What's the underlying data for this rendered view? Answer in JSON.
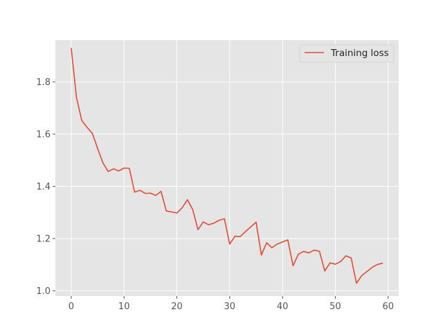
{
  "chart_data": {
    "type": "line",
    "title": "",
    "xlabel": "",
    "ylabel": "",
    "xlim": [
      -3,
      62
    ],
    "ylim": [
      0.98,
      1.96
    ],
    "xticks": [
      0,
      10,
      20,
      30,
      40,
      50,
      60
    ],
    "yticks": [
      1.0,
      1.2,
      1.4,
      1.6,
      1.8
    ],
    "ytick_labels": [
      "1.0",
      "1.2",
      "1.4",
      "1.6",
      "1.8"
    ],
    "grid": true,
    "legend_position": "top-right",
    "series": [
      {
        "name": "Training loss",
        "color": "#E24A33",
        "x": [
          0,
          1,
          2,
          3,
          4,
          5,
          6,
          7,
          8,
          9,
          10,
          11,
          12,
          13,
          14,
          15,
          16,
          17,
          18,
          19,
          20,
          21,
          22,
          23,
          24,
          25,
          26,
          27,
          28,
          29,
          30,
          31,
          32,
          33,
          34,
          35,
          36,
          37,
          38,
          39,
          40,
          41,
          42,
          43,
          44,
          45,
          46,
          47,
          48,
          49,
          50,
          51,
          52,
          53,
          54,
          55,
          56,
          57,
          58,
          59
        ],
        "values": [
          1.93,
          1.74,
          1.652,
          1.626,
          1.603,
          1.545,
          1.49,
          1.457,
          1.467,
          1.459,
          1.47,
          1.469,
          1.378,
          1.385,
          1.373,
          1.374,
          1.365,
          1.381,
          1.306,
          1.302,
          1.298,
          1.318,
          1.349,
          1.311,
          1.234,
          1.264,
          1.253,
          1.259,
          1.27,
          1.276,
          1.179,
          1.209,
          1.208,
          1.227,
          1.245,
          1.263,
          1.137,
          1.184,
          1.165,
          1.179,
          1.187,
          1.195,
          1.096,
          1.14,
          1.151,
          1.145,
          1.156,
          1.151,
          1.076,
          1.107,
          1.102,
          1.112,
          1.134,
          1.126,
          1.029,
          1.058,
          1.074,
          1.09,
          1.101,
          1.106
        ]
      }
    ]
  }
}
